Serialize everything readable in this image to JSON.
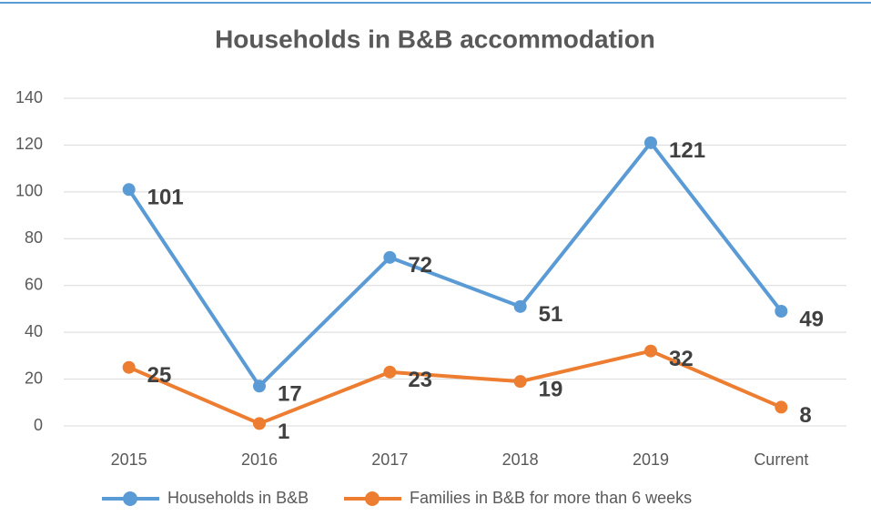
{
  "chart_data": {
    "type": "line",
    "title": "Households in B&B accommodation",
    "categories": [
      "2015",
      "2016",
      "2017",
      "2018",
      "2019",
      "Current"
    ],
    "series": [
      {
        "name": "Households in B&B",
        "color": "#5b9bd5",
        "values": [
          101,
          17,
          72,
          51,
          121,
          49
        ]
      },
      {
        "name": "Families in B&B for more than 6 weeks",
        "color": "#ed7d31",
        "values": [
          25,
          1,
          23,
          19,
          32,
          8
        ]
      }
    ],
    "ylim": [
      0,
      140
    ],
    "yticks": [
      0,
      20,
      40,
      60,
      80,
      100,
      120,
      140
    ],
    "grid": true,
    "legend": "bottom"
  }
}
